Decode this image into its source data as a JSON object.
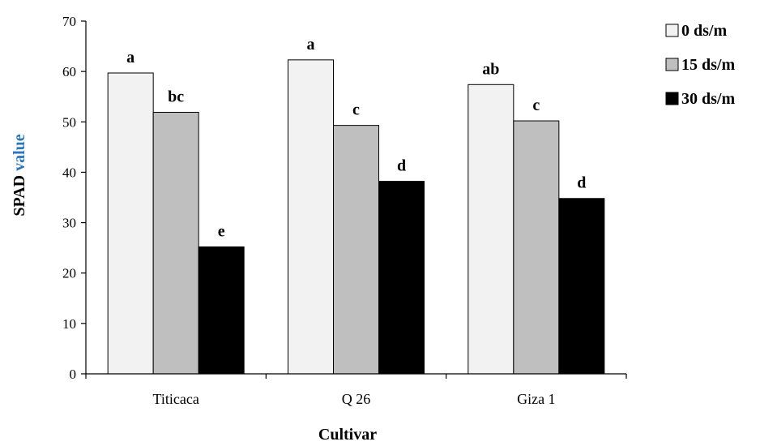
{
  "chart_data": {
    "type": "bar",
    "categories": [
      "Titicaca",
      "Q 26",
      "Giza 1"
    ],
    "series": [
      {
        "name": "0 ds/m",
        "color": "#f2f2f2",
        "values": [
          59.7,
          62.3,
          57.4
        ],
        "labels": [
          "a",
          "a",
          "ab"
        ]
      },
      {
        "name": "15 ds/m",
        "color": "#bfbfbf",
        "values": [
          51.9,
          49.3,
          50.2
        ],
        "labels": [
          "bc",
          "c",
          "c"
        ]
      },
      {
        "name": "30 ds/m",
        "color": "#000000",
        "values": [
          25.2,
          38.2,
          34.8
        ],
        "labels": [
          "e",
          "d",
          "d"
        ]
      }
    ],
    "xlabel": "Cultivar",
    "ylabel": {
      "part1": "SPAD",
      "part2": "value",
      "part2_color": "#2e75b6"
    },
    "ylim": [
      0,
      70
    ],
    "yticks": [
      0,
      10,
      20,
      30,
      40,
      50,
      60,
      70
    ],
    "legend_position": "top-right",
    "grid": false
  }
}
